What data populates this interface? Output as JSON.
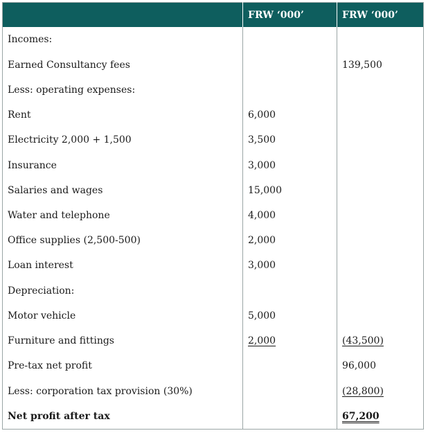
{
  "header": {
    "col1": "",
    "col2": "FRW ‘000’",
    "col3": "FRW ‘000’"
  },
  "rows": [
    {
      "label": "Incomes:",
      "c2": "",
      "c3": ""
    },
    {
      "label": "Earned Consultancy fees",
      "c2": "",
      "c3": "139,500"
    },
    {
      "label": "Less: operating expenses:",
      "c2": "",
      "c3": ""
    },
    {
      "label": "Rent",
      "c2": "6,000",
      "c3": ""
    },
    {
      "label": "Electricity 2,000 + 1,500",
      "c2": "3,500",
      "c3": ""
    },
    {
      "label": "Insurance",
      "c2": "3,000",
      "c3": ""
    },
    {
      "label": "Salaries and wages",
      "c2": "15,000",
      "c3": ""
    },
    {
      "label": "Water and telephone",
      "c2": "4,000",
      "c3": ""
    },
    {
      "label": "Office supplies (2,500-500)",
      "c2": "2,000",
      "c3": ""
    },
    {
      "label": "Loan interest",
      "c2": "3,000",
      "c3": ""
    },
    {
      "label": "Depreciation:",
      "c2": "",
      "c3": ""
    },
    {
      "label": "Motor vehicle",
      "c2": "5,000",
      "c3": ""
    },
    {
      "label": "Furniture and fittings",
      "c2": "2,000",
      "c3": "(43,500)"
    },
    {
      "label": "Pre-tax net profit",
      "c2": "",
      "c3": "96,000"
    },
    {
      "label": "Less: corporation tax provision (30%)",
      "c2": "",
      "c3": "(28,800)"
    },
    {
      "label": "Net profit after tax",
      "c2": "",
      "c3": "67,200"
    }
  ],
  "colors": {
    "header_bg": "#0e5e5e",
    "header_text": "#ffffff",
    "border": "#9aa5a5"
  }
}
